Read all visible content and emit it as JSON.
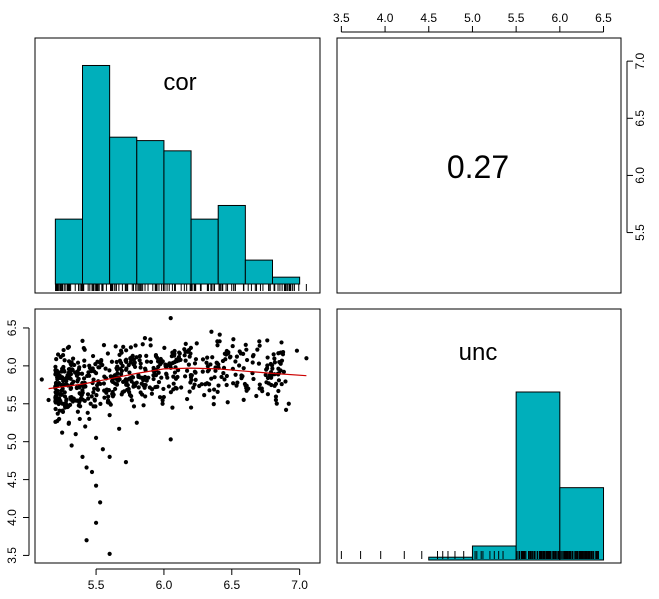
{
  "chart_data": [
    {
      "type": "histogram",
      "variable": "cor",
      "panel_label": "cor",
      "bar_color": "#00AFBB",
      "bins": [
        {
          "x0": 5.2,
          "x1": 5.4,
          "height": 0.19
        },
        {
          "x0": 5.4,
          "x1": 5.6,
          "height": 0.64
        },
        {
          "x0": 5.6,
          "x1": 5.8,
          "height": 0.43
        },
        {
          "x0": 5.8,
          "x1": 6.0,
          "height": 0.42
        },
        {
          "x0": 6.0,
          "x1": 6.2,
          "height": 0.39
        },
        {
          "x0": 6.2,
          "x1": 6.4,
          "height": 0.19
        },
        {
          "x0": 6.4,
          "x1": 6.6,
          "height": 0.23
        },
        {
          "x0": 6.6,
          "x1": 6.8,
          "height": 0.07
        },
        {
          "x0": 6.8,
          "x1": 7.0,
          "height": 0.02
        }
      ],
      "rug_range": [
        5.2,
        7.05
      ],
      "xlim": [
        5.05,
        7.15
      ]
    },
    {
      "type": "correlation",
      "value_text": "0.27"
    },
    {
      "type": "scatter",
      "xlim": [
        5.05,
        7.15
      ],
      "ylim": [
        3.4,
        6.75
      ],
      "x_ticks": [
        "5.5",
        "6.0",
        "6.5",
        "7.0"
      ],
      "y_ticks": [
        "3.5",
        "4.0",
        "4.5",
        "5.0",
        "5.5",
        "6.0",
        "6.5"
      ],
      "points": [
        [
          5.6,
          3.52
        ],
        [
          5.43,
          3.7
        ],
        [
          5.5,
          3.93
        ],
        [
          5.53,
          4.2
        ],
        [
          5.5,
          4.42
        ],
        [
          5.47,
          4.6
        ],
        [
          5.43,
          4.66
        ],
        [
          5.4,
          4.8
        ],
        [
          5.72,
          4.73
        ],
        [
          5.6,
          4.8
        ],
        [
          5.55,
          4.9
        ],
        [
          5.32,
          4.95
        ],
        [
          6.05,
          5.03
        ],
        [
          5.25,
          5.12
        ],
        [
          5.3,
          5.25
        ],
        [
          5.42,
          5.2
        ],
        [
          5.67,
          5.17
        ],
        [
          5.45,
          5.3
        ],
        [
          5.38,
          5.3
        ],
        [
          5.6,
          5.35
        ],
        [
          5.8,
          5.25
        ],
        [
          6.2,
          5.45
        ],
        [
          6.47,
          5.52
        ],
        [
          6.9,
          5.42
        ],
        [
          6.92,
          5.5
        ],
        [
          5.15,
          5.55
        ],
        [
          5.2,
          5.72
        ],
        [
          5.22,
          6.15
        ],
        [
          5.3,
          6.25
        ],
        [
          5.4,
          6.33
        ],
        [
          6.05,
          6.63
        ],
        [
          6.35,
          6.45
        ],
        [
          6.85,
          6.05
        ],
        [
          7.05,
          6.1
        ],
        [
          6.98,
          6.2
        ],
        [
          6.75,
          5.88
        ],
        [
          5.85,
          5.48
        ],
        [
          5.1,
          5.82
        ],
        [
          5.35,
          5.1
        ],
        [
          5.5,
          5.05
        ],
        [
          5.48,
          5.65
        ],
        [
          5.7,
          6.25
        ],
        [
          5.9,
          6.35
        ],
        [
          6.15,
          6.22
        ],
        [
          5.25,
          5.85
        ]
      ],
      "cloud": {
        "n": 560,
        "x_range": [
          5.2,
          6.9
        ],
        "y_center": 5.85,
        "y_spread": 0.22,
        "seed": 7
      },
      "trend": [
        [
          5.15,
          5.7
        ],
        [
          5.4,
          5.76
        ],
        [
          5.6,
          5.83
        ],
        [
          5.8,
          5.9
        ],
        [
          6.0,
          5.96
        ],
        [
          6.2,
          5.97
        ],
        [
          6.4,
          5.96
        ],
        [
          6.6,
          5.93
        ],
        [
          6.8,
          5.9
        ],
        [
          7.05,
          5.87
        ]
      ],
      "point_color": "#000000",
      "trend_color": "#cc0000"
    },
    {
      "type": "histogram",
      "variable": "unc",
      "panel_label": "unc",
      "bar_color": "#00AFBB",
      "bins": [
        {
          "x0": 4.5,
          "x1": 5.0,
          "height": 0.012
        },
        {
          "x0": 5.0,
          "x1": 5.5,
          "height": 0.06
        },
        {
          "x0": 5.5,
          "x1": 6.0,
          "height": 0.72
        },
        {
          "x0": 6.0,
          "x1": 6.5,
          "height": 0.31
        }
      ],
      "rug_points": [
        3.5,
        3.72,
        3.95,
        4.22,
        4.42,
        4.6,
        4.66,
        4.72,
        4.8,
        4.9,
        5.03,
        5.05,
        5.1,
        5.12,
        5.2,
        5.25,
        5.3,
        5.35
      ],
      "rug_range": [
        5.5,
        6.45
      ],
      "xlim": [
        3.45,
        6.7
      ],
      "x_ticks": [
        "3.5",
        "4.0",
        "4.5",
        "5.0",
        "5.5",
        "6.0",
        "6.5"
      ]
    }
  ],
  "top_axis_ticks": [
    "3.5",
    "4.0",
    "4.5",
    "5.0",
    "5.5",
    "6.0",
    "6.5"
  ],
  "right_axis_ticks": [
    "5.5",
    "6.0",
    "6.5",
    "7.0"
  ],
  "bottom_axis_ticks": [
    "5.5",
    "6.0",
    "6.5",
    "7.0"
  ],
  "left_axis_ticks": [
    "3.5",
    "4.0",
    "4.5",
    "5.0",
    "5.5",
    "6.0",
    "6.5"
  ]
}
